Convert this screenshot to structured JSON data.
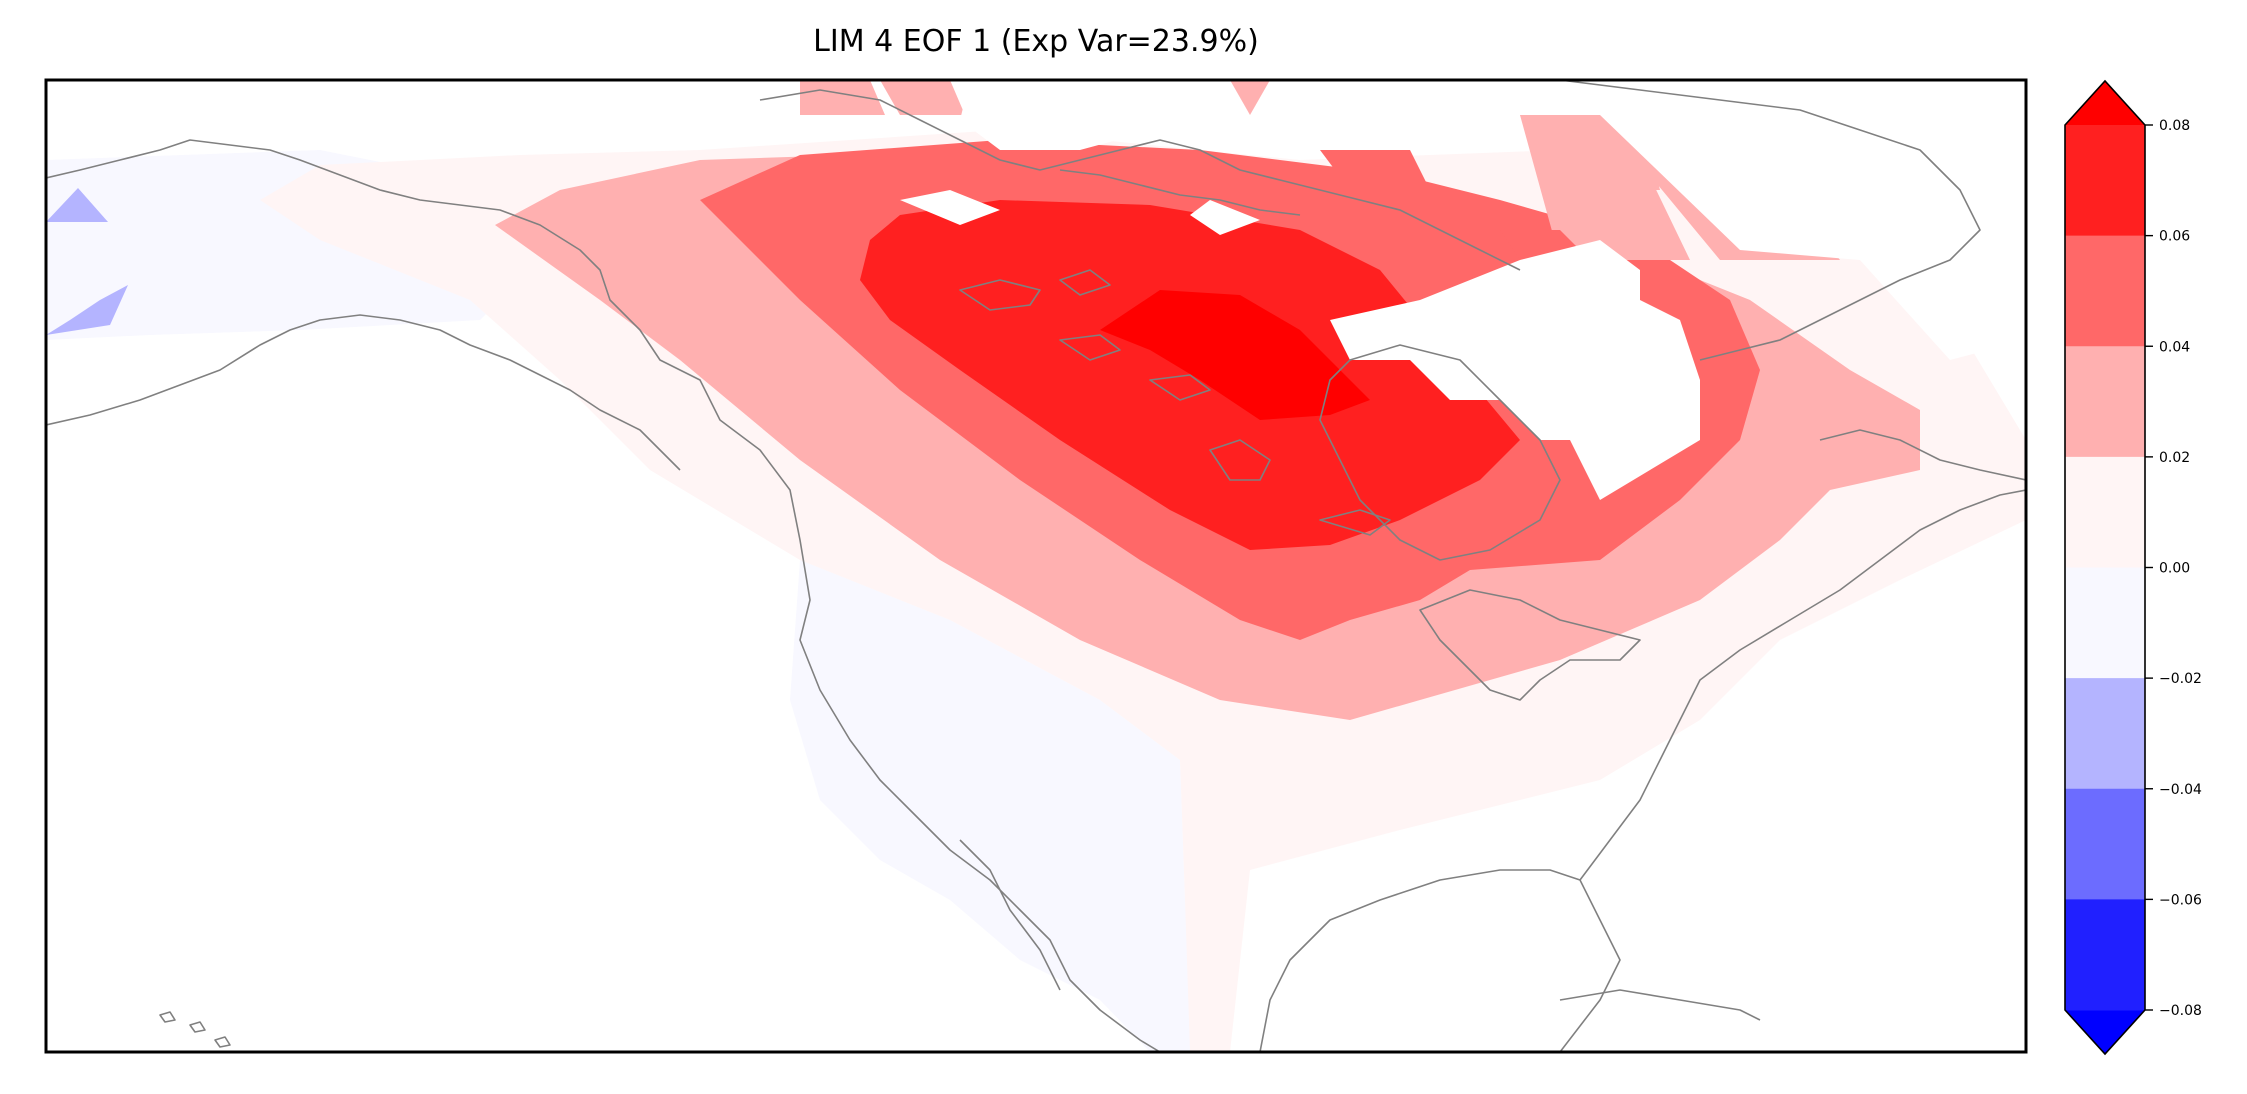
{
  "title": "LIM 4 EOF 1 (Exp Var=23.9%)",
  "colorbar": {
    "extend": "both",
    "levels": [
      -0.08,
      -0.06,
      -0.04,
      -0.02,
      0.0,
      0.02,
      0.04,
      0.06,
      0.08
    ],
    "tick_labels": [
      "0.08",
      "0.06",
      "0.04",
      "0.02",
      "0.00",
      "−0.02",
      "−0.04",
      "−0.06",
      "−0.08"
    ],
    "bin_colors_top_to_bottom": [
      "#ff2020",
      "#ff6868",
      "#ffb0b0",
      "#fff5f5",
      "#f8f8ff",
      "#b4b4ff",
      "#6c6cff",
      "#2020ff"
    ],
    "over_color": "#ff0000",
    "under_color": "#0000ff"
  },
  "map": {
    "region": "North America",
    "coastline_color": "#808080"
  }
}
